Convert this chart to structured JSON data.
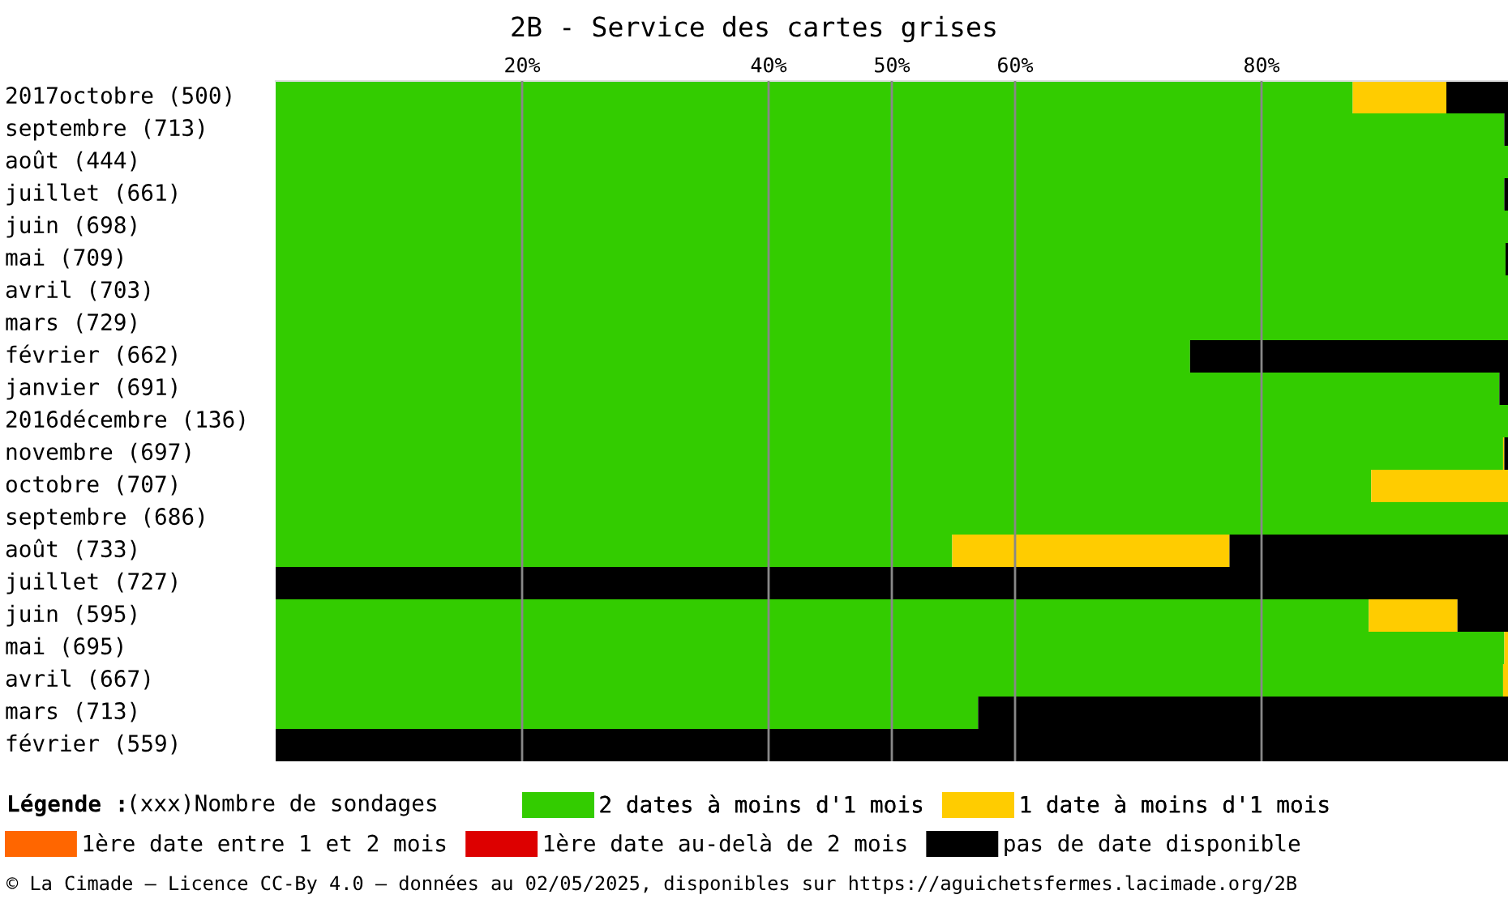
{
  "chart_data": {
    "type": "bar",
    "orientation": "horizontal",
    "stacked": true,
    "title": "2B - Service des cartes grises",
    "categories": [
      "2017octobre (500)",
      "septembre (713)",
      "août (444)",
      "juillet (661)",
      "juin (698)",
      "mai (709)",
      "avril (703)",
      "mars (729)",
      "février (662)",
      "janvier (691)",
      "2016décembre (136)",
      "novembre (697)",
      "octobre (707)",
      "septembre (686)",
      "août (733)",
      "juillet (727)",
      "juin (595)",
      "mai (695)",
      "avril (667)",
      "mars (713)",
      "février (559)"
    ],
    "series": [
      {
        "name": "2 dates à moins d'1 mois",
        "color": "#33cc00",
        "values": [
          87.4,
          99.7,
          100,
          99.7,
          100,
          99.8,
          100,
          100,
          74.2,
          99.3,
          100,
          99.6,
          88.9,
          100,
          54.9,
          0,
          88.7,
          99.7,
          99.6,
          57.0,
          0
        ]
      },
      {
        "name": "1 date à moins d'1 mois",
        "color": "#ffcc00",
        "values": [
          7.6,
          0,
          0,
          0,
          0,
          0,
          0,
          0,
          0,
          0,
          0,
          0.1,
          11.1,
          0,
          22.5,
          0,
          7.2,
          0.3,
          0.4,
          0,
          0
        ]
      },
      {
        "name": "1ère date entre 1 et 2 mois",
        "color": "#ff6600",
        "values": [
          0,
          0,
          0,
          0,
          0,
          0,
          0,
          0,
          0,
          0,
          0,
          0,
          0,
          0,
          0,
          0,
          0,
          0,
          0,
          0,
          0
        ]
      },
      {
        "name": "1ère date au-delà de 2 mois",
        "color": "#dd0000",
        "values": [
          0,
          0,
          0,
          0,
          0,
          0,
          0,
          0,
          0,
          0,
          0,
          0,
          0,
          0,
          0,
          0,
          0,
          0,
          0,
          0,
          0
        ]
      },
      {
        "name": "pas de date disponible",
        "color": "#000000",
        "values": [
          5.0,
          0.3,
          0,
          0.3,
          0,
          0.2,
          0,
          0,
          25.8,
          0.7,
          0,
          0.3,
          0,
          0,
          22.6,
          100,
          4.1,
          0,
          0,
          43.0,
          100
        ]
      }
    ],
    "xlim": [
      0,
      100
    ],
    "xticks": [
      {
        "value": 20,
        "label": "20%"
      },
      {
        "value": 40,
        "label": "40%"
      },
      {
        "value": 50,
        "label": "50%"
      },
      {
        "value": 60,
        "label": "60%"
      },
      {
        "value": 80,
        "label": "80%"
      }
    ],
    "grid": "x",
    "legend": "bottom",
    "legend_title": "Légende :",
    "annotations": [
      "(xxx)Nombre de sondages",
      "© La Cimade – Licence CC-By 4.0 – données au 02/05/2025, disponibles sur https://aguichetsfermes.lacimade.org/2B"
    ]
  }
}
